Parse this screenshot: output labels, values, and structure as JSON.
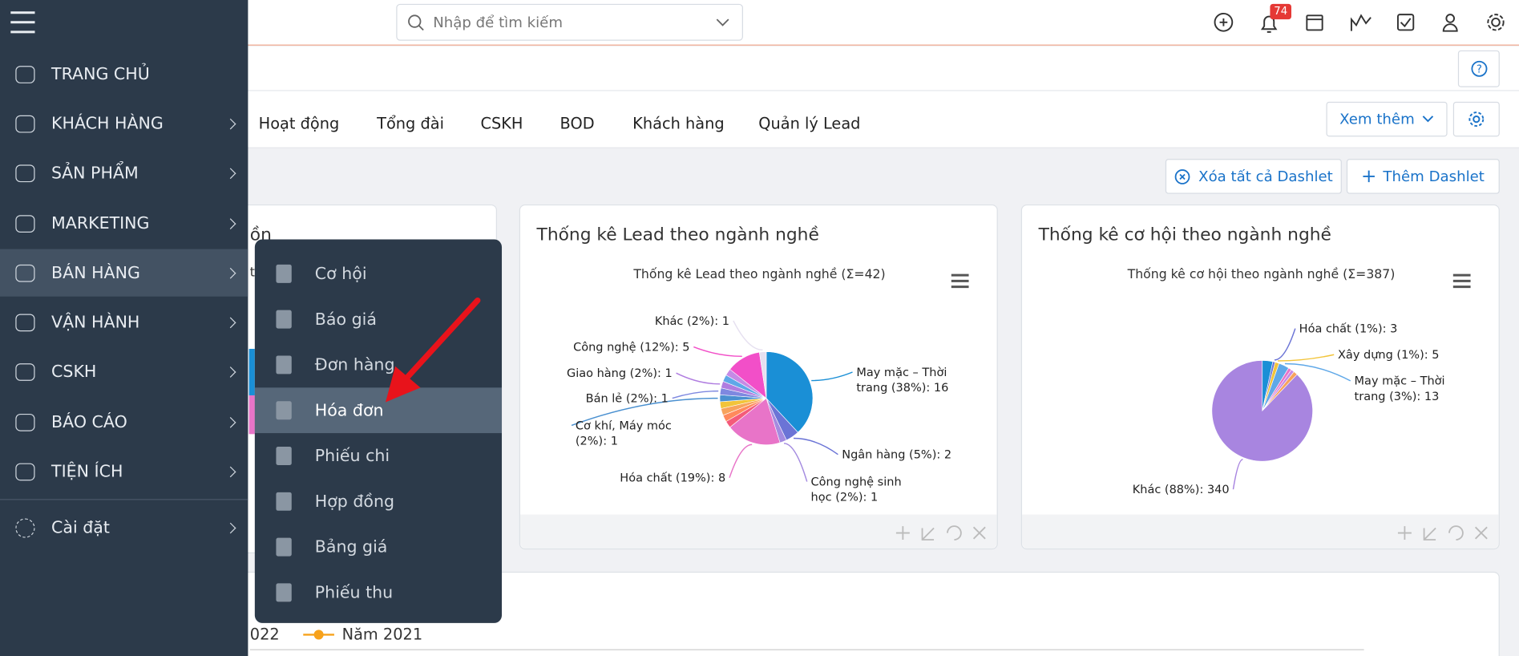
{
  "header": {
    "search_placeholder": "Nhập để tìm kiếm",
    "notification_count": "74"
  },
  "sidebar": {
    "items": [
      "TRANG CHỦ",
      "KHÁCH HÀNG",
      "SẢN PHẨM",
      "MARKETING",
      "BÁN HÀNG",
      "VẬN HÀNH",
      "CSKH",
      "BÁO CÁO",
      "TIỆN ÍCH"
    ],
    "settings": "Cài đặt",
    "active": 4
  },
  "submenu": {
    "items": [
      "Cơ hội",
      "Báo giá",
      "Đơn hàng",
      "Hóa đơn",
      "Phiếu chi",
      "Hợp đồng",
      "Bảng giá",
      "Phiếu thu"
    ],
    "active": 3
  },
  "tabs": [
    "Hoạt động",
    "Tổng đài",
    "CSKH",
    "BOD",
    "Khách hàng",
    "Quản lý Lead"
  ],
  "buttons": {
    "more": "Xem thêm",
    "clear": "Xóa tất cả Dashlet",
    "add": "Thêm Dashlet"
  },
  "partial_texts": {
    "dashlet_title": "ồn",
    "cut_text": "t",
    "legend_cut": "022",
    "legend_2021": "Năm 2021"
  },
  "dashlets": [
    {
      "title": "Thống kê Lead theo ngành nghề",
      "chart_data": {
        "type": "pie",
        "title": "Thống kê Lead theo ngành nghề (Σ=42)",
        "slices": [
          {
            "label": [
              "May mặc – Thời",
              "trang (38%): 16"
            ],
            "value": 16,
            "color": "#1a8fd6"
          },
          {
            "label": [
              "Ngân hàng (5%): 2"
            ],
            "value": 2,
            "color": "#6b74d6"
          },
          {
            "label": [
              "Công nghệ sinh",
              "học (2%): 1"
            ],
            "value": 1,
            "color": "#a48be0"
          },
          {
            "label": [
              "Hóa chất (19%): 8"
            ],
            "value": 8,
            "color": "#e874c8"
          },
          {
            "label": null,
            "value": 1,
            "color": "#f45b7a"
          },
          {
            "label": null,
            "value": 1,
            "color": "#ff8a5c"
          },
          {
            "label": null,
            "value": 1,
            "color": "#f7a35c"
          },
          {
            "label": null,
            "value": 1,
            "color": "#f2c43a"
          },
          {
            "label": [
              "Cơ khí, Máy móc",
              "(2%): 1"
            ],
            "value": 1,
            "color": "#4a90d0"
          },
          {
            "label": [
              "Bán lẻ (2%): 1"
            ],
            "value": 1,
            "color": "#7e88e0"
          },
          {
            "label": [
              "Giao hàng (2%): 1"
            ],
            "value": 1,
            "color": "#b07de0"
          },
          {
            "label": null,
            "value": 1,
            "color": "#5fa8e8"
          },
          {
            "label": null,
            "value": 1,
            "color": "#c58ae6"
          },
          {
            "label": [
              "Công nghệ (12%): 5"
            ],
            "value": 5,
            "color": "#f24fc8"
          },
          {
            "label": [
              "Khác (2%): 1"
            ],
            "value": 1,
            "color": "#e6e0f0"
          }
        ]
      }
    },
    {
      "title": "Thống kê cơ hội theo ngành nghề",
      "chart_data": {
        "type": "pie",
        "title": "Thống kê cơ hội theo ngành nghề (Σ=387)",
        "slices": [
          {
            "label": null,
            "value": 13,
            "color": "#1a8fd6"
          },
          {
            "label": [
              "Hóa chất (1%): 3"
            ],
            "value": 3,
            "color": "#6b74d6"
          },
          {
            "label": [
              "Xây dựng (1%): 5"
            ],
            "value": 5,
            "color": "#f2c43a"
          },
          {
            "label": [
              "May mặc – Thời",
              "trang (3%): 13"
            ],
            "value": 13,
            "color": "#5fa8e8"
          },
          {
            "label": null,
            "value": 4,
            "color": "#e874c8"
          },
          {
            "label": null,
            "value": 4,
            "color": "#c58ae6"
          },
          {
            "label": null,
            "value": 5,
            "color": "#f7a35c"
          },
          {
            "label": [
              "Khác (88%): 340"
            ],
            "value": 340,
            "color": "#a885e0"
          }
        ]
      }
    }
  ]
}
